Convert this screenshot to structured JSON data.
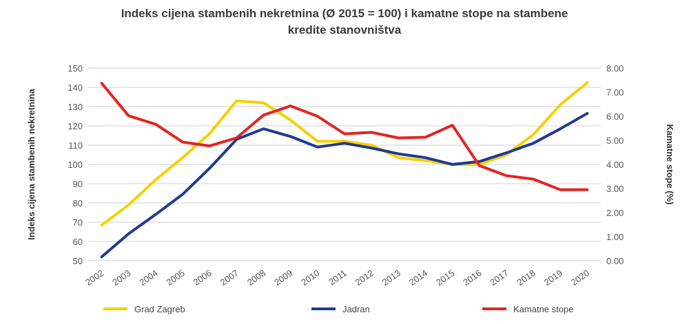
{
  "chart_data": {
    "type": "line",
    "title_line1": "Indeks cijena stambenih nekretnina (Ø 2015 = 100) i kamatne stope na stambene",
    "title_line2": "kredite stanovništva",
    "ylabel_left": "Indeks cijena stambenih nekretnina",
    "ylabel_right": "Kamatne stope (%)",
    "x": [
      "2002",
      "2003",
      "2004",
      "2005",
      "2006",
      "2007",
      "2008",
      "2009",
      "2010",
      "2011",
      "2012",
      "2013",
      "2014",
      "2015",
      "2016",
      "2017",
      "2018",
      "2019",
      "2020"
    ],
    "ylim_left": [
      50,
      150
    ],
    "yticks_left": [
      "150",
      "140",
      "130",
      "120",
      "110",
      "100",
      "90",
      "80",
      "70",
      "60",
      "50"
    ],
    "ylim_right": [
      0,
      8
    ],
    "yticks_right": [
      "8.00",
      "7.00",
      "6.00",
      "5.00",
      "4.00",
      "3.00",
      "2.00",
      "1.00",
      "0.00"
    ],
    "legend_position": "bottom",
    "series": [
      {
        "name": "Grad Zagreb",
        "axis": "left",
        "color": "#f5d000",
        "values": [
          68.5,
          79,
          92,
          103.5,
          116,
          133,
          132,
          123,
          112,
          112,
          110,
          103.5,
          102,
          100,
          100,
          105,
          115.5,
          131,
          142.5
        ]
      },
      {
        "name": "Jadran",
        "axis": "left",
        "color": "#1f3a93",
        "values": [
          52,
          64,
          74,
          84.5,
          98,
          113,
          118.5,
          114.5,
          109,
          111,
          108.5,
          105.5,
          103.5,
          100,
          101.5,
          106,
          111,
          118.5,
          126.5
        ]
      },
      {
        "name": "Kamatne stope",
        "axis": "right",
        "color": "#e52421",
        "values": [
          7.37,
          6.02,
          5.67,
          4.93,
          4.77,
          5.1,
          6.05,
          6.43,
          6.0,
          5.27,
          5.33,
          5.1,
          5.13,
          5.63,
          3.95,
          3.53,
          3.39,
          2.95,
          2.95
        ]
      }
    ]
  }
}
